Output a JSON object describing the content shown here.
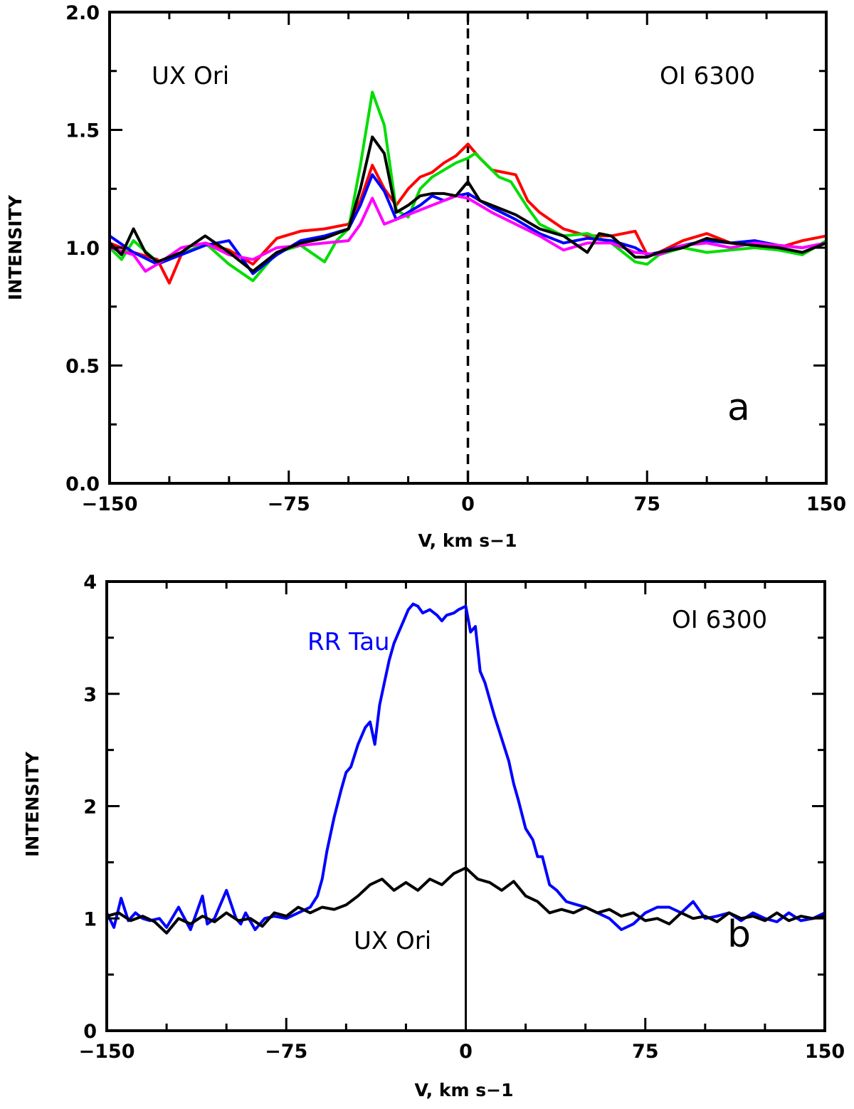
{
  "chart_data": [
    {
      "panel": "a",
      "type": "line",
      "xlabel": "V, km s−1",
      "ylabel": "INTENSITY",
      "xlim": [
        -150,
        150
      ],
      "ylim": [
        0,
        2
      ],
      "xticks": [
        "−150",
        "−75",
        "0",
        "75",
        "150"
      ],
      "yticks": [
        "0.0",
        "0.5",
        "1.0",
        "1.5",
        "2.0"
      ],
      "annotations": [
        "UX Ori",
        "OI 6300",
        "a"
      ],
      "reference_line": {
        "x": 0,
        "style": "dashed"
      },
      "series": [
        {
          "color": "#ff0000",
          "x": [
            -150,
            -140,
            -130,
            -125,
            -120,
            -110,
            -100,
            -90,
            -80,
            -70,
            -60,
            -50,
            -45,
            -40,
            -35,
            -30,
            -25,
            -20,
            -15,
            -10,
            -5,
            0,
            5,
            10,
            15,
            20,
            25,
            30,
            40,
            50,
            60,
            70,
            75,
            80,
            90,
            100,
            110,
            120,
            130,
            140,
            150
          ],
          "y": [
            1.02,
            0.98,
            0.95,
            0.85,
            0.97,
            1.02,
            0.99,
            0.93,
            1.04,
            1.07,
            1.08,
            1.1,
            1.2,
            1.35,
            1.25,
            1.18,
            1.25,
            1.3,
            1.32,
            1.36,
            1.39,
            1.44,
            1.38,
            1.33,
            1.32,
            1.31,
            1.2,
            1.15,
            1.08,
            1.05,
            1.05,
            1.07,
            0.97,
            0.98,
            1.03,
            1.06,
            1.02,
            1.01,
            1.0,
            1.03,
            1.05
          ]
        },
        {
          "color": "#00dd00",
          "x": [
            -150,
            -145,
            -140,
            -130,
            -120,
            -110,
            -100,
            -90,
            -80,
            -70,
            -60,
            -55,
            -50,
            -45,
            -40,
            -35,
            -30,
            -25,
            -20,
            -15,
            -10,
            -5,
            0,
            3,
            8,
            13,
            18,
            25,
            30,
            40,
            50,
            60,
            70,
            75,
            80,
            90,
            100,
            110,
            120,
            130,
            140,
            150
          ],
          "y": [
            1.0,
            0.95,
            1.03,
            0.94,
            0.97,
            1.02,
            0.93,
            0.86,
            0.98,
            1.01,
            0.94,
            1.03,
            1.08,
            1.35,
            1.66,
            1.52,
            1.16,
            1.13,
            1.25,
            1.3,
            1.33,
            1.36,
            1.38,
            1.4,
            1.35,
            1.3,
            1.28,
            1.17,
            1.1,
            1.05,
            1.06,
            1.02,
            0.94,
            0.93,
            0.97,
            1.0,
            0.98,
            0.99,
            1.0,
            0.99,
            0.97,
            1.03
          ]
        },
        {
          "color": "#0000ff",
          "x": [
            -150,
            -140,
            -130,
            -120,
            -110,
            -100,
            -90,
            -80,
            -70,
            -60,
            -50,
            -45,
            -40,
            -35,
            -30,
            -25,
            -20,
            -15,
            -10,
            -5,
            0,
            5,
            10,
            20,
            30,
            40,
            50,
            60,
            70,
            75,
            80,
            90,
            100,
            110,
            120,
            130,
            140,
            150
          ],
          "y": [
            1.05,
            0.98,
            0.93,
            0.97,
            1.01,
            1.03,
            0.89,
            0.97,
            1.03,
            1.05,
            1.08,
            1.18,
            1.31,
            1.24,
            1.12,
            1.15,
            1.18,
            1.22,
            1.2,
            1.22,
            1.23,
            1.2,
            1.17,
            1.12,
            1.06,
            1.02,
            1.04,
            1.03,
            1.0,
            0.97,
            0.98,
            1.01,
            1.03,
            1.02,
            1.03,
            1.01,
            1.0,
            1.02
          ]
        },
        {
          "color": "#ff00ff",
          "x": [
            -150,
            -140,
            -135,
            -130,
            -120,
            -110,
            -100,
            -90,
            -80,
            -70,
            -60,
            -50,
            -45,
            -40,
            -35,
            -30,
            -25,
            -20,
            -15,
            -10,
            -5,
            0,
            5,
            10,
            20,
            30,
            40,
            50,
            60,
            70,
            80,
            90,
            100,
            110,
            120,
            130,
            140,
            150
          ],
          "y": [
            1.0,
            0.97,
            0.9,
            0.93,
            1.0,
            1.02,
            0.97,
            0.95,
            1.0,
            1.01,
            1.02,
            1.03,
            1.1,
            1.21,
            1.1,
            1.12,
            1.14,
            1.16,
            1.18,
            1.2,
            1.22,
            1.21,
            1.18,
            1.15,
            1.1,
            1.05,
            0.99,
            1.02,
            1.02,
            0.98,
            0.97,
            1.01,
            1.02,
            1.0,
            1.02,
            1.01,
            1.0,
            1.02
          ]
        },
        {
          "color": "#000000",
          "x": [
            -150,
            -145,
            -140,
            -135,
            -130,
            -120,
            -110,
            -100,
            -90,
            -80,
            -70,
            -60,
            -55,
            -50,
            -45,
            -40,
            -35,
            -30,
            -25,
            -20,
            -15,
            -10,
            -5,
            0,
            5,
            10,
            20,
            30,
            40,
            50,
            55,
            60,
            70,
            75,
            80,
            90,
            100,
            110,
            120,
            130,
            140,
            150
          ],
          "y": [
            1.02,
            0.97,
            1.08,
            0.98,
            0.94,
            0.98,
            1.05,
            0.98,
            0.9,
            0.98,
            1.02,
            1.04,
            1.06,
            1.08,
            1.25,
            1.47,
            1.4,
            1.15,
            1.18,
            1.22,
            1.23,
            1.23,
            1.22,
            1.28,
            1.2,
            1.18,
            1.14,
            1.08,
            1.05,
            0.98,
            1.06,
            1.05,
            0.96,
            0.96,
            0.98,
            1.0,
            1.04,
            1.02,
            1.01,
            1.0,
            0.98,
            1.02
          ]
        }
      ]
    },
    {
      "panel": "b",
      "type": "line",
      "xlabel": "V, km s−1",
      "ylabel": "INTENSITY",
      "xlim": [
        -150,
        150
      ],
      "ylim": [
        0,
        4
      ],
      "xticks": [
        "−150",
        "−75",
        "0",
        "75",
        "150"
      ],
      "yticks": [
        "0",
        "1",
        "2",
        "3",
        "4"
      ],
      "annotations": [
        "OI 6300",
        "b"
      ],
      "reference_line": {
        "x": 0,
        "style": "solid"
      },
      "series": [
        {
          "name": "RR Tau",
          "color": "#0000ff",
          "x": [
            -150,
            -147,
            -144,
            -141,
            -138,
            -135,
            -132,
            -128,
            -125,
            -120,
            -115,
            -110,
            -108,
            -105,
            -100,
            -96,
            -94,
            -92,
            -88,
            -84,
            -80,
            -75,
            -70,
            -65,
            -62,
            -60,
            -58,
            -55,
            -52,
            -50,
            -48,
            -45,
            -42,
            -40,
            -38,
            -36,
            -34,
            -32,
            -30,
            -28,
            -26,
            -24,
            -22,
            -20,
            -18,
            -15,
            -12,
            -10,
            -8,
            -5,
            -3,
            0,
            2,
            4,
            6,
            8,
            10,
            12,
            15,
            18,
            20,
            22,
            25,
            28,
            30,
            32,
            35,
            38,
            40,
            42,
            45,
            50,
            55,
            60,
            65,
            70,
            75,
            80,
            85,
            90,
            95,
            100,
            105,
            110,
            115,
            120,
            125,
            130,
            135,
            140,
            145,
            150
          ],
          "y": [
            1.05,
            0.92,
            1.18,
            0.98,
            1.05,
            1.0,
            0.98,
            1.0,
            0.92,
            1.1,
            0.9,
            1.2,
            0.95,
            1.0,
            1.25,
            1.0,
            0.95,
            1.05,
            0.9,
            1.0,
            1.02,
            1.0,
            1.05,
            1.1,
            1.2,
            1.35,
            1.6,
            1.9,
            2.15,
            2.3,
            2.35,
            2.55,
            2.7,
            2.75,
            2.55,
            2.9,
            3.1,
            3.3,
            3.45,
            3.55,
            3.65,
            3.75,
            3.8,
            3.78,
            3.72,
            3.75,
            3.7,
            3.65,
            3.7,
            3.72,
            3.75,
            3.78,
            3.55,
            3.6,
            3.2,
            3.1,
            2.95,
            2.8,
            2.6,
            2.4,
            2.2,
            2.05,
            1.8,
            1.7,
            1.55,
            1.55,
            1.3,
            1.25,
            1.2,
            1.15,
            1.13,
            1.1,
            1.05,
            1.0,
            0.9,
            0.95,
            1.05,
            1.1,
            1.1,
            1.05,
            1.15,
            1.0,
            1.02,
            1.05,
            0.98,
            1.05,
            1.0,
            0.97,
            1.05,
            0.98,
            1.0,
            1.05
          ]
        },
        {
          "name": "UX Ori",
          "color": "#000000",
          "x": [
            -150,
            -145,
            -140,
            -135,
            -130,
            -125,
            -120,
            -115,
            -110,
            -105,
            -100,
            -95,
            -90,
            -85,
            -80,
            -75,
            -70,
            -65,
            -60,
            -55,
            -50,
            -45,
            -40,
            -35,
            -30,
            -25,
            -20,
            -15,
            -10,
            -5,
            0,
            5,
            10,
            15,
            20,
            25,
            30,
            35,
            40,
            45,
            50,
            55,
            60,
            65,
            70,
            75,
            80,
            85,
            90,
            95,
            100,
            105,
            110,
            115,
            120,
            125,
            130,
            135,
            140,
            145,
            150
          ],
          "y": [
            1.02,
            1.05,
            0.98,
            1.02,
            0.97,
            0.87,
            1.0,
            0.95,
            1.02,
            0.97,
            1.05,
            0.98,
            1.0,
            0.93,
            1.05,
            1.02,
            1.1,
            1.05,
            1.1,
            1.08,
            1.12,
            1.2,
            1.3,
            1.35,
            1.25,
            1.32,
            1.25,
            1.35,
            1.3,
            1.4,
            1.45,
            1.35,
            1.32,
            1.25,
            1.33,
            1.2,
            1.15,
            1.05,
            1.08,
            1.05,
            1.1,
            1.05,
            1.08,
            1.02,
            1.05,
            0.98,
            1.0,
            0.95,
            1.05,
            1.0,
            1.02,
            0.97,
            1.05,
            1.0,
            1.02,
            0.98,
            1.05,
            0.98,
            1.02,
            1.0,
            1.02
          ]
        }
      ]
    }
  ]
}
